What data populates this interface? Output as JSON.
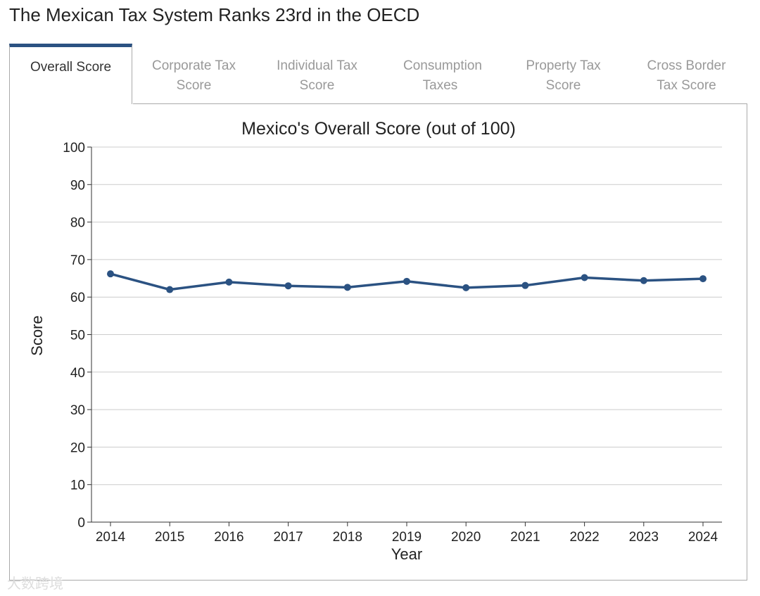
{
  "title": "The Mexican Tax System Ranks 23rd in the OECD",
  "tabs": [
    {
      "label": "Overall Score",
      "active": true
    },
    {
      "label": "Corporate Tax Score"
    },
    {
      "label": "Individual Tax Score"
    },
    {
      "label": "Consumption Taxes"
    },
    {
      "label": "Property Tax Score"
    },
    {
      "label": "Cross Border Tax Score"
    }
  ],
  "watermark": "大数跨境",
  "chart_data": {
    "type": "line",
    "title": "Mexico's Overall Score (out of 100)",
    "xlabel": "Year",
    "ylabel": "Score",
    "x": [
      "2014",
      "2015",
      "2016",
      "2017",
      "2018",
      "2019",
      "2020",
      "2021",
      "2022",
      "2023",
      "2024"
    ],
    "series": [
      {
        "name": "Overall Score",
        "values": [
          66.2,
          62.0,
          64.0,
          63.0,
          62.6,
          64.2,
          62.5,
          63.1,
          65.2,
          64.4,
          64.9
        ]
      }
    ],
    "ylim": [
      0,
      100
    ],
    "yticks": [
      0,
      10,
      20,
      30,
      40,
      50,
      60,
      70,
      80,
      90,
      100
    ],
    "grid": true,
    "color": "#2b5282"
  }
}
